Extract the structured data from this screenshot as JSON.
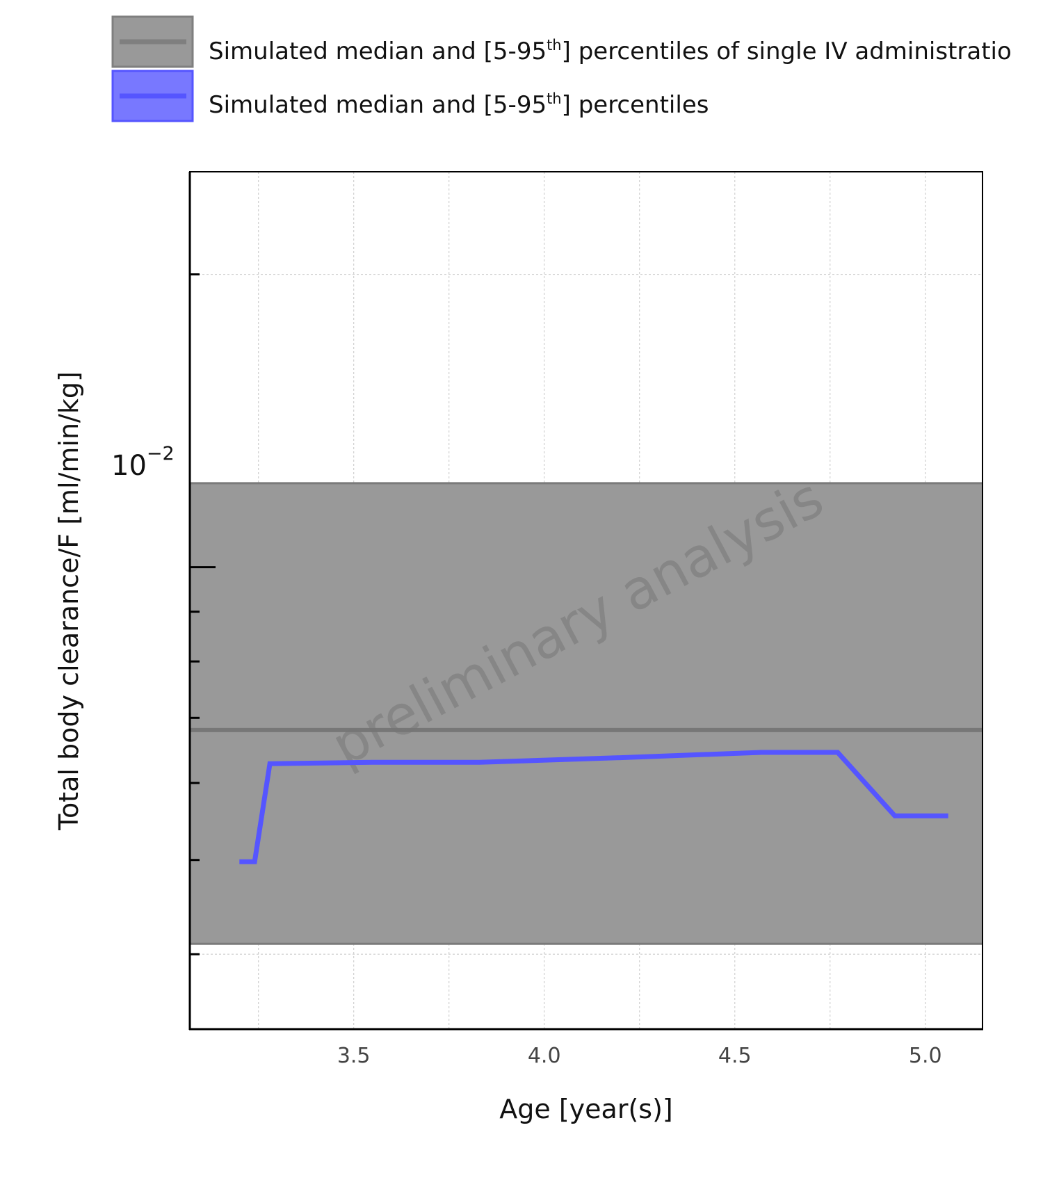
{
  "chart_data": {
    "type": "line",
    "x": [
      3.2,
      3.24,
      3.28,
      3.55,
      3.83,
      4.2,
      4.57,
      4.77,
      4.92,
      5.06
    ],
    "xlabel": "Age [year(s)]",
    "ylabel": "Total body clearance/F [ml/min/kg]",
    "xlim": [
      3.07,
      5.15
    ],
    "ylim": [
      0.00335,
      0.0255
    ],
    "yscale": "log",
    "x_ticks": [
      3.5,
      4.0,
      4.5,
      5.0
    ],
    "x_tick_labels": [
      "3.5",
      "4.0",
      "4.5",
      "5.0"
    ],
    "y_tick_label": {
      "base": "10",
      "exponent": "−2"
    },
    "grid": true,
    "legend_position": "top-left",
    "legend": [
      {
        "label_before": "Simulated median and [5-95",
        "label_sup": "th",
        "label_after": "] percentiles of single IV administratio"
      },
      {
        "label_before": "Simulated median and [5-95",
        "label_sup": "th",
        "label_after": "] percentiles"
      }
    ],
    "series": [
      {
        "kind": "reference-band",
        "color": "#8c8c8c",
        "median": 0.0068,
        "p5": 0.0041,
        "p95": 0.0122
      },
      {
        "kind": "median-line",
        "color": "#5555ff",
        "y": [
          0.00498,
          0.00498,
          0.00628,
          0.0063,
          0.0063,
          0.00637,
          0.00645,
          0.00645,
          0.00555,
          0.00555
        ]
      }
    ],
    "watermark": "preliminary analysis"
  }
}
